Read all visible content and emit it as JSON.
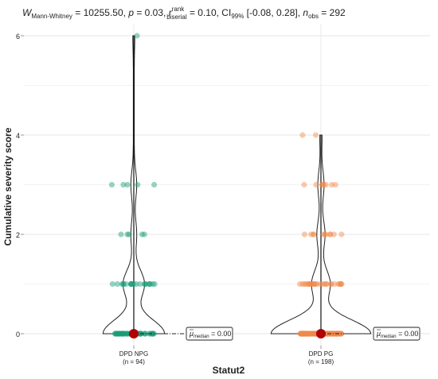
{
  "chart_data": {
    "type": "violin",
    "subtitle_parts": {
      "W": "W",
      "W_sub": "Mann-Whitney",
      "W_val": " = 10255.50, ",
      "p": "p",
      "p_val": " = 0.03, ",
      "r": "r",
      "r_sup": "rank",
      "r_sub": "biserial",
      "r_val": " = 0.10, CI",
      "ci_sub": "99%",
      "ci_val": " [-0.08, 0.28], ",
      "n": "n",
      "n_sub": "obs",
      "n_val": " = 292"
    },
    "xlabel": "Statut2",
    "ylabel": "Cumulative severity score",
    "ylim": [
      0,
      6.2
    ],
    "yticks": [
      "0",
      "2",
      "4",
      "6"
    ],
    "grid": true,
    "groups": [
      {
        "name": "DPD NPG",
        "n_label": "(n = 94)",
        "color": "#1a9e77",
        "median": 0,
        "median_label": "μ",
        "median_sub": "median",
        "median_val": " = 0.00",
        "points": [
          {
            "y": 0,
            "count": 62
          },
          {
            "y": 1,
            "count": 21
          },
          {
            "y": 2,
            "count": 5
          },
          {
            "y": 3,
            "count": 5
          },
          {
            "y": 6,
            "count": 1
          }
        ]
      },
      {
        "name": "DPD PG",
        "n_label": "(n = 198)",
        "color": "#f08a4b",
        "median": 0,
        "median_label": "μ",
        "median_sub": "median",
        "median_val": " = 0.00",
        "points": [
          {
            "y": 0,
            "count": 150
          },
          {
            "y": 1,
            "count": 27
          },
          {
            "y": 2,
            "count": 11
          },
          {
            "y": 3,
            "count": 8
          },
          {
            "y": 4,
            "count": 2
          }
        ]
      }
    ],
    "median_point_color": "#b30000"
  }
}
